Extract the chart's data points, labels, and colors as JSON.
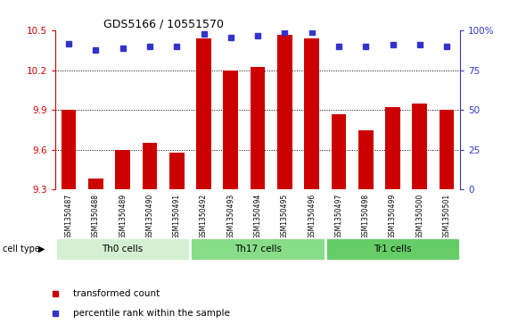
{
  "title": "GDS5166 / 10551570",
  "samples": [
    "GSM1350487",
    "GSM1350488",
    "GSM1350489",
    "GSM1350490",
    "GSM1350491",
    "GSM1350492",
    "GSM1350493",
    "GSM1350494",
    "GSM1350495",
    "GSM1350496",
    "GSM1350497",
    "GSM1350498",
    "GSM1350499",
    "GSM1350500",
    "GSM1350501"
  ],
  "transformed_count": [
    9.9,
    9.38,
    9.6,
    9.65,
    9.58,
    10.44,
    10.2,
    10.23,
    10.47,
    10.44,
    9.87,
    9.75,
    9.92,
    9.95,
    9.9
  ],
  "percentile_rank": [
    92,
    88,
    89,
    90,
    90,
    98,
    96,
    97,
    99,
    99,
    90,
    90,
    91,
    91,
    90
  ],
  "cell_types": [
    {
      "label": "Th0 cells",
      "start": 0,
      "end": 5,
      "color": "#d4f0d4"
    },
    {
      "label": "Th17 cells",
      "start": 5,
      "end": 10,
      "color": "#88dd88"
    },
    {
      "label": "Tr1 cells",
      "start": 10,
      "end": 15,
      "color": "#66cc66"
    }
  ],
  "ylim_left": [
    9.3,
    10.5
  ],
  "ylim_right": [
    0,
    100
  ],
  "yticks_left": [
    9.3,
    9.6,
    9.9,
    10.2,
    10.5
  ],
  "yticks_right": [
    0,
    25,
    50,
    75,
    100
  ],
  "bar_color": "#cc0000",
  "dot_color": "#3333cc",
  "bg_color": "#d8d8d8",
  "cell_type_label": "cell type",
  "legend_items": [
    {
      "label": "transformed count",
      "color": "#cc0000",
      "marker": "s"
    },
    {
      "label": "percentile rank within the sample",
      "color": "#3333cc",
      "marker": "s"
    }
  ]
}
